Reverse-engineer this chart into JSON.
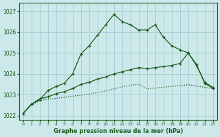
{
  "title": "Graphe pression niveau de la mer (hPa)",
  "background_color": "#cce8ea",
  "grid_color": "#a8d0d4",
  "line_color": "#1a5c1a",
  "x_ticks": [
    0,
    1,
    2,
    3,
    4,
    5,
    6,
    7,
    8,
    9,
    10,
    11,
    12,
    13,
    14,
    15,
    16,
    17,
    18,
    19,
    20,
    21,
    22,
    23
  ],
  "ylim": [
    1021.8,
    1027.4
  ],
  "yticks": [
    1022,
    1023,
    1024,
    1025,
    1026,
    1027
  ],
  "series1": [
    1022.1,
    1022.55,
    1022.75,
    1023.2,
    1023.4,
    1023.55,
    1024.0,
    1024.95,
    1025.35,
    1025.85,
    1026.35,
    1026.85,
    1026.5,
    1026.35,
    1026.1,
    1026.1,
    1026.35,
    1025.75,
    1025.35,
    1025.15,
    1025.0,
    1024.4,
    1023.6,
    1023.35
  ],
  "series2": [
    1022.1,
    1022.5,
    1022.72,
    1022.78,
    1022.83,
    1022.88,
    1022.93,
    1022.98,
    1023.03,
    1023.1,
    1023.18,
    1023.28,
    1023.38,
    1023.45,
    1023.5,
    1023.28,
    1023.32,
    1023.36,
    1023.4,
    1023.44,
    1023.48,
    1023.42,
    1023.35,
    1023.3
  ],
  "series3": [
    1022.1,
    1022.55,
    1022.8,
    1022.9,
    1023.05,
    1023.15,
    1023.3,
    1023.5,
    1023.6,
    1023.75,
    1023.85,
    1024.0,
    1024.1,
    1024.2,
    1024.3,
    1024.25,
    1024.3,
    1024.35,
    1024.4,
    1024.5,
    1025.0,
    1024.45,
    1023.55,
    1023.3
  ]
}
